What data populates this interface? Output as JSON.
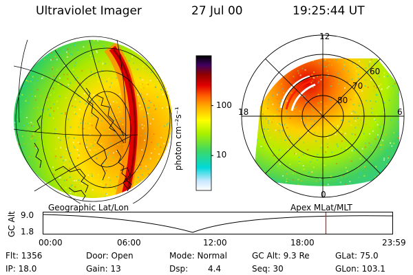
{
  "header": {
    "instrument": "Ultraviolet Imager",
    "date": "27 Jul 00",
    "time": "19:25:44 UT"
  },
  "colorbar": {
    "unit_label": "photon cm⁻²s⁻¹",
    "ticks": [
      "100",
      "10"
    ],
    "tick_values": [
      100,
      10
    ],
    "range": [
      2,
      1000
    ],
    "scale": "log"
  },
  "polar_plot": {
    "mlt_labels": [
      "12",
      "18",
      "6",
      "0"
    ],
    "mlat_labels": [
      "60",
      "70",
      "80"
    ]
  },
  "track": {
    "left_title": "Geographic Lat/Lon",
    "right_title": "Apex MLat/MLT",
    "y_axis_label": "GC Alt",
    "y_ticks": [
      "9.0",
      "1.8"
    ],
    "x_ticks": [
      "00:00",
      "06:00",
      "12:00",
      "18:00",
      "23:59"
    ],
    "current_marker_time": "19:25"
  },
  "info": {
    "flt": "Flt: 1356",
    "ip": "IP: 18.0",
    "door": "Door: Open",
    "gain": "Gain: 13",
    "mode": "Mode: Normal",
    "dsp_label": "Dsp:",
    "dsp_value": "4.4",
    "gc_alt": "GC Alt: 9.3 Re",
    "seq": "Seq: 30",
    "glat": "GLat: 75.0",
    "glon": "GLon: 103.1"
  },
  "colors": {
    "marker": "#ff0000",
    "palette": [
      "#ffffff",
      "#c8e8ff",
      "#00d8d8",
      "#60e060",
      "#b8f000",
      "#ffff00",
      "#ffb000",
      "#ff6000",
      "#e00000",
      "#900000",
      "#400060",
      "#000000"
    ]
  }
}
